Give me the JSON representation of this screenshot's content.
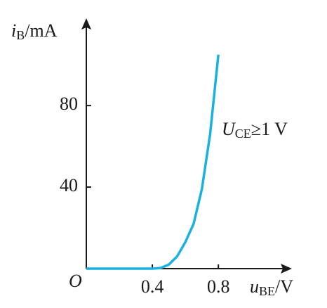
{
  "chart_data": {
    "type": "line",
    "y_label": {
      "var": "i",
      "sub": "B",
      "unit": "/mA"
    },
    "x_label": {
      "var": "u",
      "sub": "BE",
      "unit": "/V"
    },
    "origin_label": "O",
    "annotation": {
      "var": "U",
      "sub": "CE",
      "rest": "≥1 V"
    },
    "x": [
      0,
      0.4,
      0.45,
      0.5,
      0.55,
      0.6,
      0.65,
      0.7,
      0.75,
      0.8
    ],
    "series": [
      {
        "color": "#1ab0e0",
        "values": [
          0,
          0,
          0.3,
          2,
          6,
          13,
          22,
          39,
          66,
          105
        ]
      }
    ],
    "xlim": [
      0,
      1.22
    ],
    "ylim": [
      0,
      118
    ],
    "xticks": [
      0.4,
      0.8
    ],
    "yticks": [
      40,
      80
    ]
  }
}
